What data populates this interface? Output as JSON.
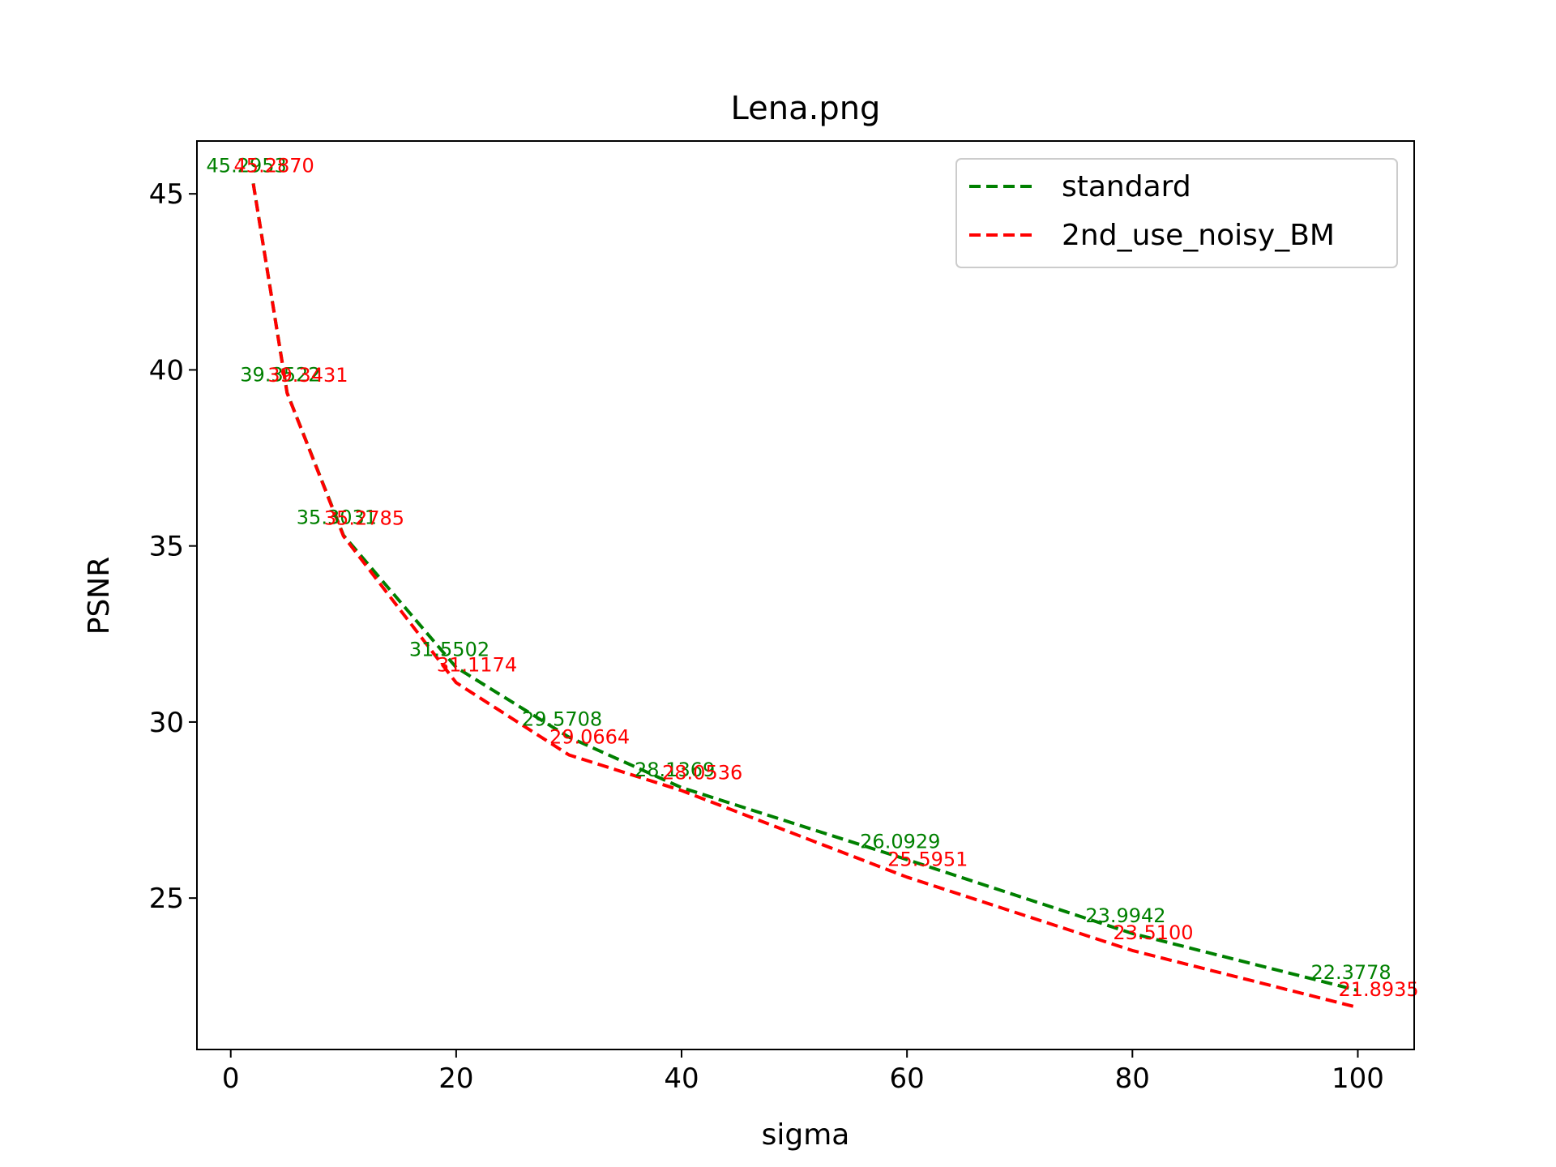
{
  "chart_data": {
    "type": "line",
    "title": "Lena.png",
    "xlabel": "sigma",
    "ylabel": "PSNR",
    "xlim": [
      -3,
      105
    ],
    "ylim": [
      20.7,
      46.5
    ],
    "xticks": [
      0,
      20,
      40,
      60,
      80,
      100
    ],
    "yticks": [
      25,
      30,
      35,
      40,
      45
    ],
    "grid": false,
    "legend_position": "top-right",
    "x": [
      2,
      5,
      10,
      20,
      30,
      40,
      60,
      80,
      100
    ],
    "series": [
      {
        "name": "standard",
        "color": "#008000",
        "line_style": "dashed",
        "values": [
          45.2953,
          39.3522,
          35.3031,
          31.5502,
          29.5708,
          28.1369,
          26.0929,
          23.9942,
          22.3778
        ],
        "labels": [
          "45.2953",
          "39.3522",
          "35.3031",
          "31.5502",
          "29.5708",
          "28.1369",
          "26.0929",
          "23.9942",
          "22.3778"
        ]
      },
      {
        "name": "2nd_use_noisy_BM",
        "color": "#ff0000",
        "line_style": "dashed",
        "values": [
          45.287,
          39.3431,
          35.2785,
          31.1174,
          29.0664,
          28.0536,
          25.5951,
          23.51,
          21.8935
        ],
        "labels": [
          "45.2870",
          "39.3431",
          "35.2785",
          "31.1174",
          "29.0664",
          "28.0536",
          "25.5951",
          "23.5100",
          "21.8935"
        ]
      }
    ]
  }
}
